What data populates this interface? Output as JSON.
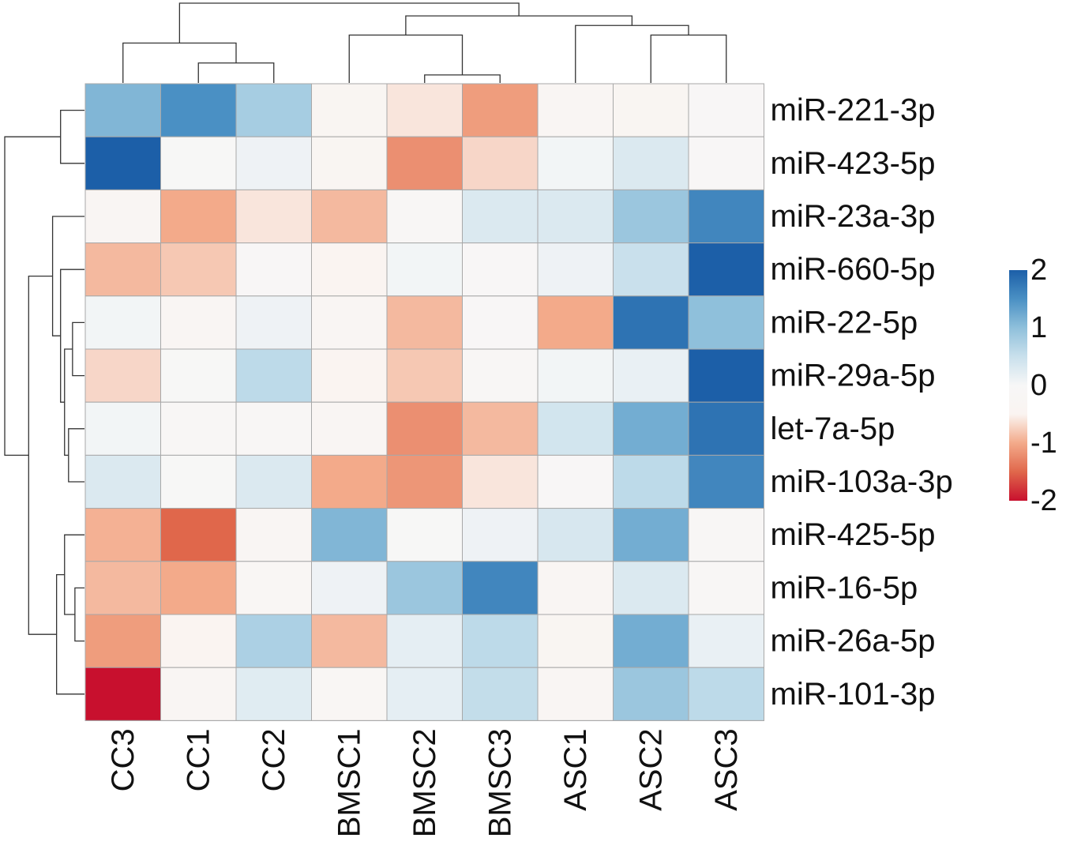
{
  "chart_data": {
    "type": "heatmap",
    "title": "",
    "xlabel": "",
    "ylabel": "",
    "columns": [
      "CC3",
      "CC1",
      "CC2",
      "BMSC1",
      "BMSC2",
      "BMSC3",
      "ASC1",
      "ASC2",
      "ASC3"
    ],
    "rows": [
      "miR-221-3p",
      "miR-423-5p",
      "miR-23a-3p",
      "miR-660-5p",
      "miR-22-5p",
      "miR-29a-5p",
      "let-7a-5p",
      "miR-103a-3p",
      "miR-425-5p",
      "miR-16-5p",
      "miR-26a-5p",
      "miR-101-3p"
    ],
    "values": [
      [
        1.1,
        1.5,
        0.8,
        -0.4,
        -0.6,
        -1.1,
        -0.3,
        -0.4,
        -0.1
      ],
      [
        2.0,
        -0.05,
        0.1,
        -0.4,
        -1.2,
        -0.7,
        0.05,
        0.3,
        -0.1
      ],
      [
        -0.3,
        -1.0,
        -0.6,
        -0.9,
        -0.2,
        0.3,
        0.3,
        0.9,
        1.6
      ],
      [
        -0.9,
        -0.8,
        -0.1,
        -0.5,
        0.05,
        -0.1,
        0.1,
        0.5,
        2.0
      ],
      [
        0.05,
        -0.3,
        0.1,
        -0.3,
        -0.9,
        -0.1,
        -1.0,
        1.8,
        1.0
      ],
      [
        -0.7,
        -0.05,
        0.6,
        -0.5,
        -0.8,
        -0.2,
        0.05,
        0.15,
        2.0
      ],
      [
        0.05,
        -0.15,
        -0.15,
        -0.35,
        -1.2,
        -0.9,
        0.4,
        1.2,
        1.8
      ],
      [
        0.3,
        -0.05,
        0.3,
        -1.0,
        -1.15,
        -0.6,
        -0.1,
        0.6,
        1.6
      ],
      [
        -0.95,
        -1.5,
        -0.35,
        1.1,
        -0.05,
        0.1,
        0.35,
        1.2,
        -0.15
      ],
      [
        -0.9,
        -1.0,
        -0.25,
        0.1,
        0.9,
        1.6,
        -0.35,
        0.3,
        -0.2
      ],
      [
        -1.1,
        -0.5,
        0.75,
        -0.9,
        0.2,
        0.6,
        -0.4,
        1.2,
        0.15
      ],
      [
        -2.0,
        -0.35,
        0.25,
        -0.25,
        0.2,
        0.55,
        -0.35,
        0.9,
        0.6
      ]
    ],
    "colorbar": {
      "min": -2,
      "max": 2,
      "ticks": [
        "2",
        "1",
        "0",
        "-1",
        "-2"
      ],
      "tick_values": [
        2,
        1,
        0,
        -1,
        -2
      ],
      "colors_low_to_high": [
        "#c8102e",
        "#e0674b",
        "#f3aa8a",
        "#faf4f1",
        "#f7f7f7",
        "#c9e0ec",
        "#8fc0db",
        "#4a90c4",
        "#1c5fa8"
      ]
    },
    "column_dendrogram": [
      {
        "a": 1,
        "b": 2,
        "h": 0.25
      },
      {
        "a": 0,
        "b": "n0",
        "h": 0.5
      },
      {
        "a": 4,
        "b": 5,
        "h": 0.1
      },
      {
        "a": 3,
        "b": "n2",
        "h": 0.6
      },
      {
        "a": 7,
        "b": 8,
        "h": 0.6
      },
      {
        "a": 6,
        "b": "n4",
        "h": 0.72
      },
      {
        "a": "n3",
        "b": "n5",
        "h": 0.84
      },
      {
        "a": "n1",
        "b": "n6",
        "h": 1.0
      }
    ],
    "row_dendrogram": [
      {
        "a": 0,
        "b": 1,
        "h": 0.3
      },
      {
        "a": 4,
        "b": 5,
        "h": 0.15
      },
      {
        "a": 6,
        "b": 7,
        "h": 0.2
      },
      {
        "a": "n1",
        "b": "n2",
        "h": 0.25
      },
      {
        "a": 3,
        "b": "n3",
        "h": 0.3
      },
      {
        "a": 2,
        "b": "n4",
        "h": 0.4
      },
      {
        "a": 9,
        "b": 10,
        "h": 0.12
      },
      {
        "a": 8,
        "b": "n6",
        "h": 0.25
      },
      {
        "a": 11,
        "b": "n7",
        "h": 0.35
      },
      {
        "a": "n5",
        "b": "n8",
        "h": 0.7
      },
      {
        "a": "n0",
        "b": "n9",
        "h": 1.0
      }
    ]
  }
}
